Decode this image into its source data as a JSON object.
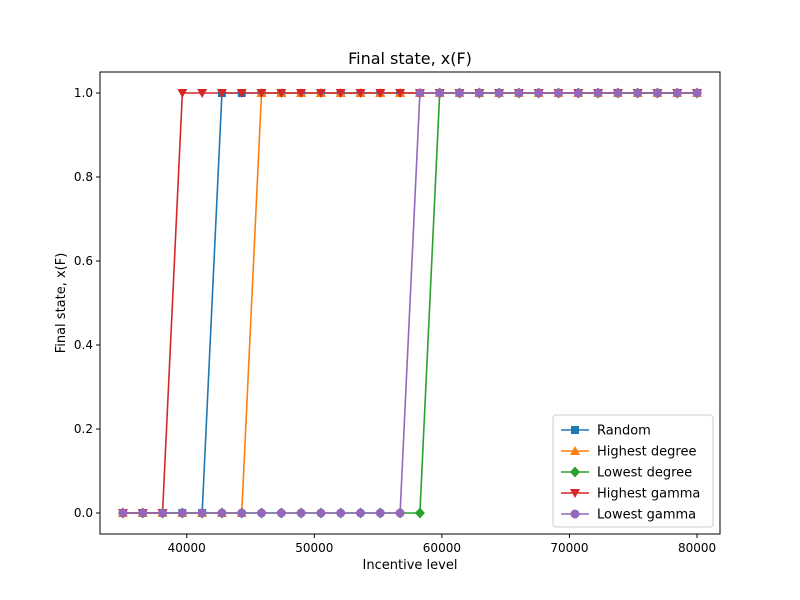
{
  "chart_data": {
    "type": "line",
    "title": "Final state, x(F)",
    "xlabel": "Incentive level",
    "ylabel": "Final state, x(F)",
    "xlim": [
      33200,
      81800
    ],
    "ylim": [
      -0.05,
      1.05
    ],
    "xticks": [
      40000,
      50000,
      60000,
      70000,
      80000
    ],
    "xtick_labels": [
      "40000",
      "50000",
      "60000",
      "70000",
      "80000"
    ],
    "yticks": [
      0.0,
      0.2,
      0.4,
      0.6,
      0.8,
      1.0
    ],
    "ytick_labels": [
      "0.0",
      "0.2",
      "0.4",
      "0.6",
      "0.8",
      "1.0"
    ],
    "grid": false,
    "legend_position": "lower right",
    "x": [
      35000,
      36552,
      38103,
      39655,
      41207,
      42759,
      44310,
      45862,
      47414,
      48966,
      50517,
      52069,
      53621,
      55172,
      56724,
      58276,
      59828,
      61379,
      62931,
      64483,
      66034,
      67586,
      69138,
      70690,
      72241,
      73793,
      75345,
      76897,
      78448,
      80000
    ],
    "series": [
      {
        "name": "Random",
        "color": "#1f77b4",
        "marker": "square",
        "values": [
          0,
          0,
          0,
          0,
          0,
          1,
          1,
          1,
          1,
          1,
          1,
          1,
          1,
          1,
          1,
          1,
          1,
          1,
          1,
          1,
          1,
          1,
          1,
          1,
          1,
          1,
          1,
          1,
          1,
          1
        ]
      },
      {
        "name": "Highest degree",
        "color": "#ff7f0e",
        "marker": "triangle-up",
        "values": [
          0,
          0,
          0,
          0,
          0,
          0,
          0,
          1,
          1,
          1,
          1,
          1,
          1,
          1,
          1,
          1,
          1,
          1,
          1,
          1,
          1,
          1,
          1,
          1,
          1,
          1,
          1,
          1,
          1,
          1
        ]
      },
      {
        "name": "Lowest degree",
        "color": "#2ca02c",
        "marker": "diamond",
        "values": [
          0,
          0,
          0,
          0,
          0,
          0,
          0,
          0,
          0,
          0,
          0,
          0,
          0,
          0,
          0,
          0,
          1,
          1,
          1,
          1,
          1,
          1,
          1,
          1,
          1,
          1,
          1,
          1,
          1,
          1
        ]
      },
      {
        "name": "Highest gamma",
        "color": "#d62728",
        "marker": "triangle-down",
        "values": [
          0,
          0,
          0,
          1,
          1,
          1,
          1,
          1,
          1,
          1,
          1,
          1,
          1,
          1,
          1,
          1,
          1,
          1,
          1,
          1,
          1,
          1,
          1,
          1,
          1,
          1,
          1,
          1,
          1,
          1
        ]
      },
      {
        "name": "Lowest gamma",
        "color": "#9467bd",
        "marker": "circle",
        "values": [
          0,
          0,
          0,
          0,
          0,
          0,
          0,
          0,
          0,
          0,
          0,
          0,
          0,
          0,
          0,
          1,
          1,
          1,
          1,
          1,
          1,
          1,
          1,
          1,
          1,
          1,
          1,
          1,
          1,
          1
        ]
      }
    ]
  }
}
